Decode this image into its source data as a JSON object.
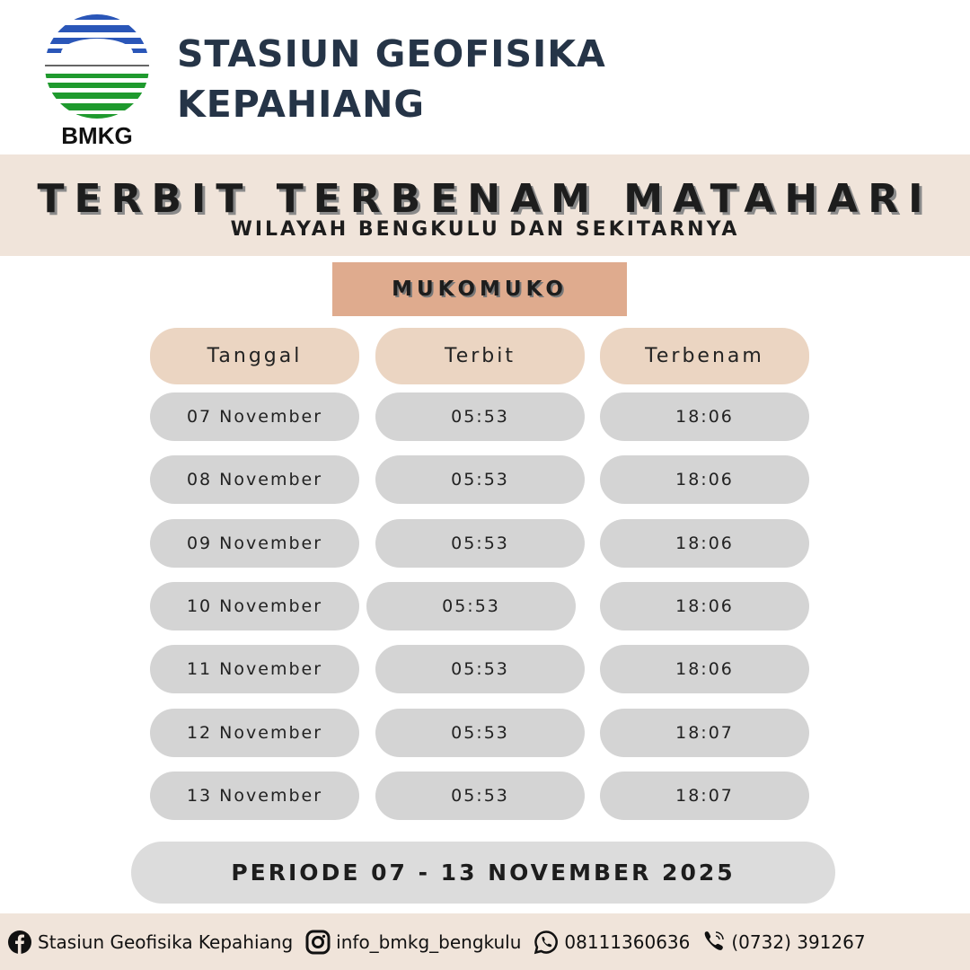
{
  "header": {
    "logo_text": "BMKG",
    "station_line1": "STASIUN GEOFISIKA",
    "station_line2": "KEPAHIANG"
  },
  "banner": {
    "title": "TERBIT TERBENAM MATAHARI",
    "subtitle": "WILAYAH BENGKULU DAN SEKITARNYA"
  },
  "location": "MUKOMUKO",
  "table": {
    "columns": [
      "Tanggal",
      "Terbit",
      "Terbenam"
    ],
    "rows": [
      {
        "date": "07 November",
        "rise": "05:53",
        "set": "18:06"
      },
      {
        "date": "08 November",
        "rise": "05:53",
        "set": "18:06"
      },
      {
        "date": "09 November",
        "rise": "05:53",
        "set": "18:06"
      },
      {
        "date": "10 November",
        "rise": "05:53",
        "set": "18:06"
      },
      {
        "date": "11 November",
        "rise": "05:53",
        "set": "18:06"
      },
      {
        "date": "12 November",
        "rise": "05:53",
        "set": "18:07"
      },
      {
        "date": "13 November",
        "rise": "05:53",
        "set": "18:07"
      }
    ]
  },
  "period": "PERIODE 07 - 13 NOVEMBER 2025",
  "footer": {
    "facebook": "Stasiun Geofisika Kepahiang",
    "instagram": "info_bmkg_bengkulu",
    "whatsapp": "08111360636",
    "phone": "(0732) 391267"
  },
  "colors": {
    "band": "#f0e4da",
    "location_box": "#dfab8e",
    "header_pill": "#ebd5c2",
    "cell_pill": "#d4d4d4",
    "title_text": "#253447"
  }
}
